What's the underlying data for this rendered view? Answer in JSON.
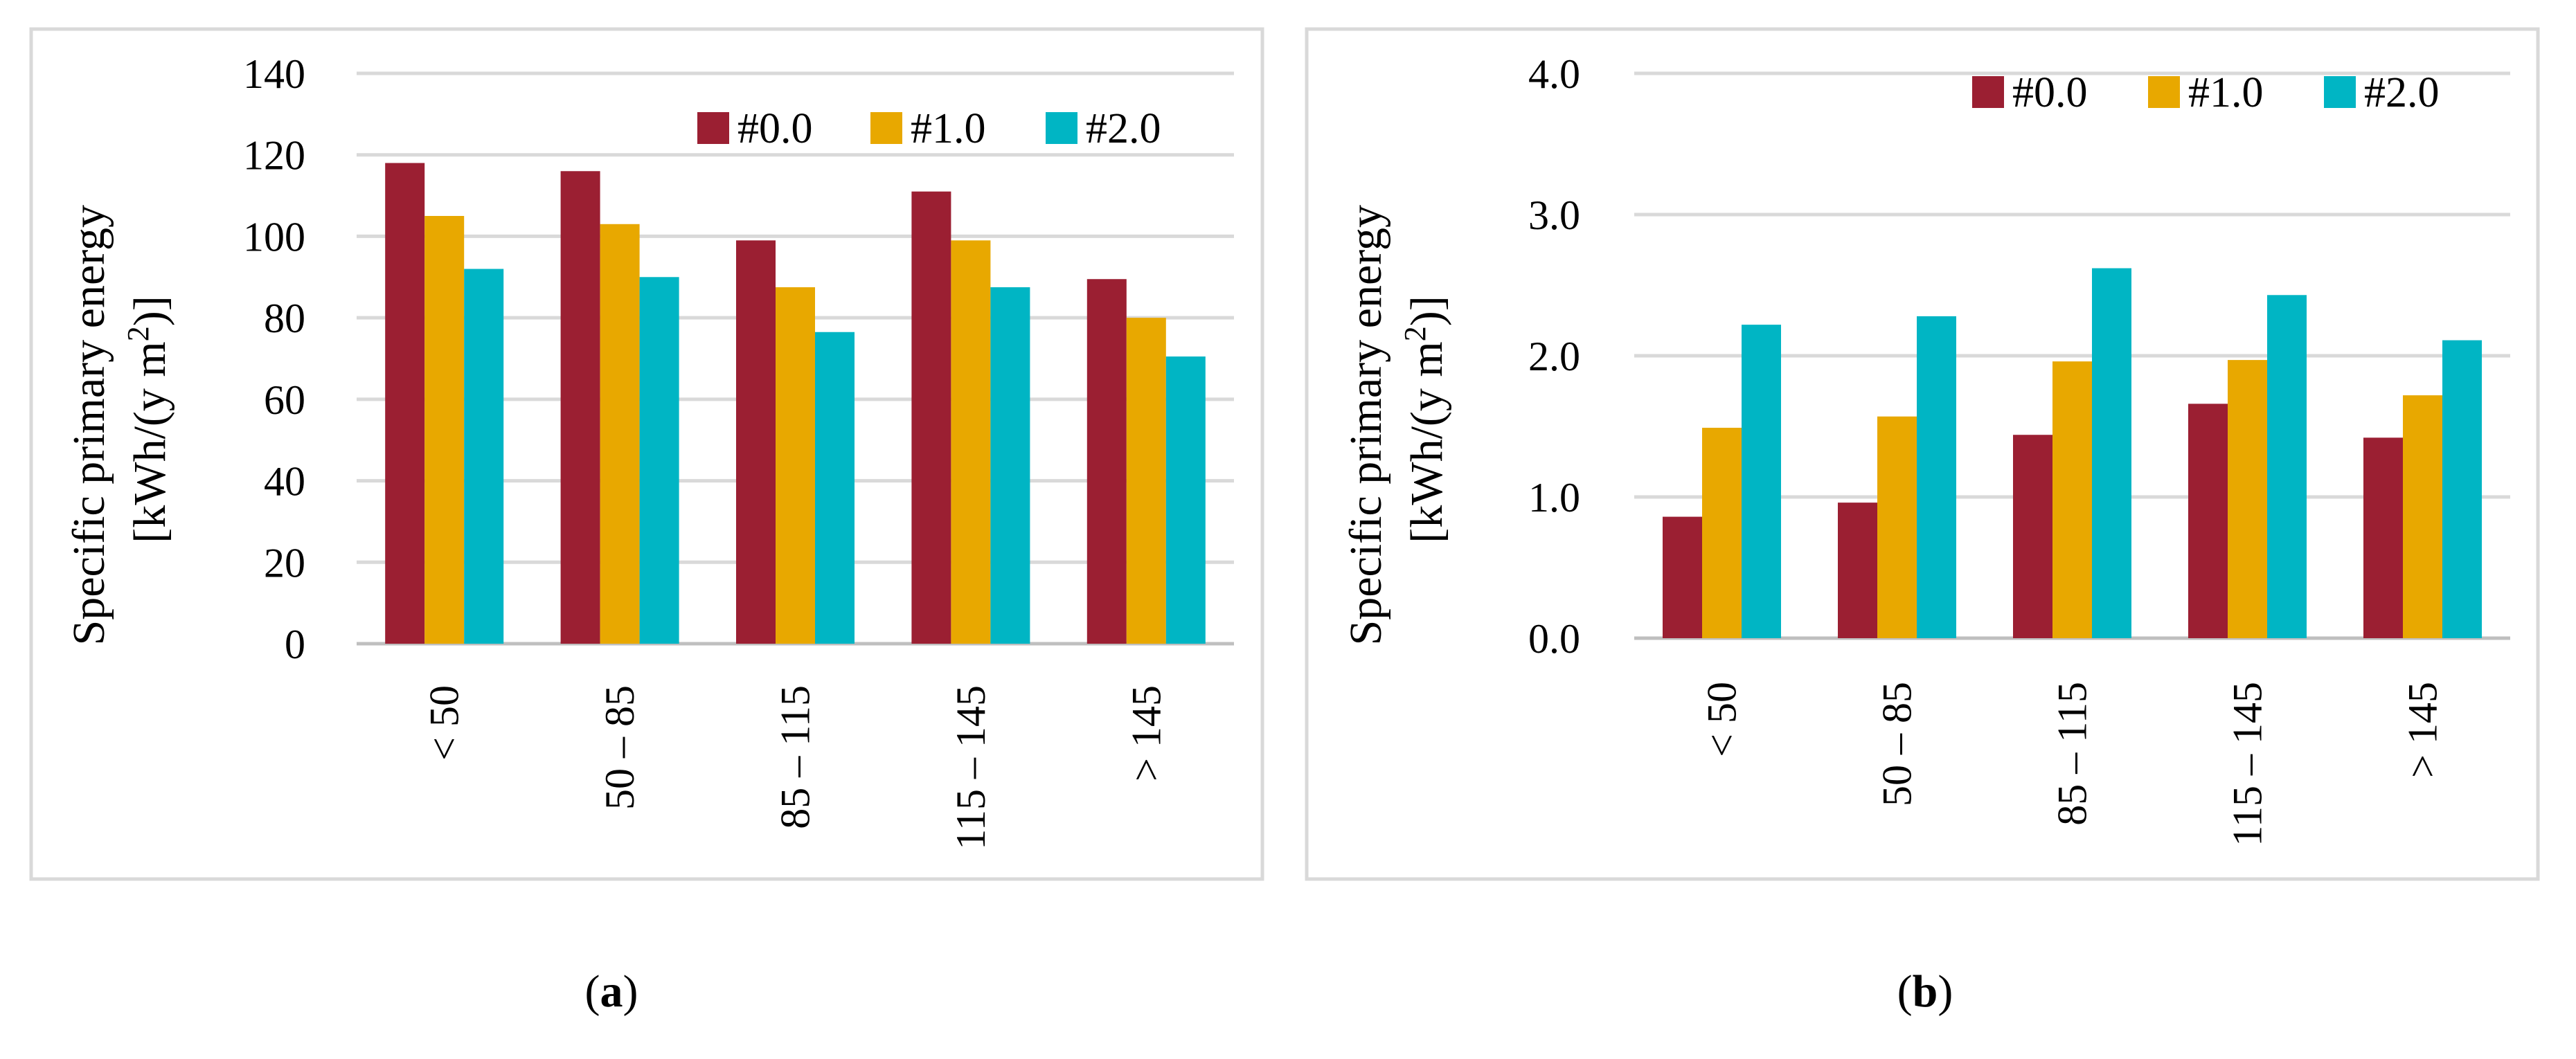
{
  "colors": {
    "series": [
      "#9B1F32",
      "#E8A800",
      "#00B5C4"
    ],
    "grid": "#D9D9D9",
    "frame": "#D9D9D9",
    "axis": "#BFBFBF"
  },
  "panel_labels": [
    {
      "open": "(",
      "letter": "a",
      "close": ")"
    },
    {
      "open": "(",
      "letter": "b",
      "close": ")"
    }
  ],
  "chart_data": [
    {
      "type": "bar",
      "title": "",
      "ylabel_line1": "Specific primary energy",
      "ylabel_line2_pre": "[kWh/(y m",
      "ylabel_sup": "2",
      "ylabel_line2_post": ")]",
      "xlabel": "",
      "categories": [
        "< 50",
        "50 – 85",
        "85 – 115",
        "115 – 145",
        "> 145"
      ],
      "series": [
        {
          "name": "#0.0",
          "values": [
            118,
            116,
            99,
            111,
            89.5
          ]
        },
        {
          "name": "#1.0",
          "values": [
            105,
            103,
            87.5,
            99,
            80
          ]
        },
        {
          "name": "#2.0",
          "values": [
            92,
            90,
            76.5,
            87.5,
            70.5
          ]
        }
      ],
      "ylim": [
        0,
        140
      ],
      "yticks": [
        0,
        20,
        40,
        60,
        80,
        100,
        120,
        140
      ],
      "ytick_labels": [
        "0",
        "20",
        "40",
        "60",
        "80",
        "100",
        "120",
        "140"
      ],
      "grid": true,
      "legend": "top-right"
    },
    {
      "type": "bar",
      "title": "",
      "ylabel_line1": "Specific primary energy",
      "ylabel_line2_pre": "[kWh/(y m",
      "ylabel_sup": "2",
      "ylabel_line2_post": ")]",
      "xlabel": "",
      "categories": [
        "< 50",
        "50 – 85",
        "85 – 115",
        "115 – 145",
        "> 145"
      ],
      "series": [
        {
          "name": "#0.0",
          "values": [
            0.86,
            0.96,
            1.44,
            1.66,
            1.42
          ]
        },
        {
          "name": "#1.0",
          "values": [
            1.49,
            1.57,
            1.96,
            1.97,
            1.72
          ]
        },
        {
          "name": "#2.0",
          "values": [
            2.22,
            2.28,
            2.62,
            2.43,
            2.11
          ]
        }
      ],
      "ylim": [
        0,
        4
      ],
      "yticks": [
        0,
        1,
        2,
        3,
        4
      ],
      "ytick_labels": [
        "0.0",
        "1.0",
        "2.0",
        "3.0",
        "4.0"
      ],
      "grid": true,
      "legend": "top-right"
    }
  ]
}
